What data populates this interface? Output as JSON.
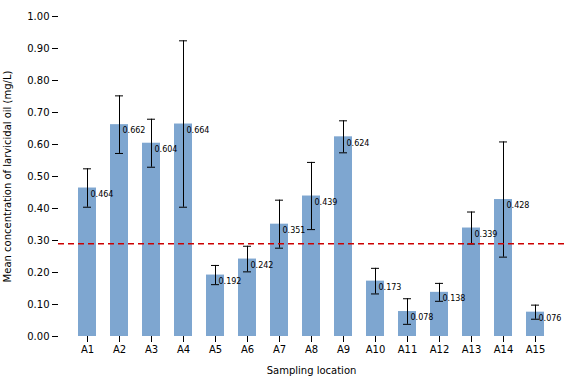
{
  "chart_data": {
    "type": "bar",
    "categories": [
      "A1",
      "A2",
      "A3",
      "A4",
      "A5",
      "A6",
      "A7",
      "A8",
      "A9",
      "A10",
      "A11",
      "A12",
      "A13",
      "A14",
      "A15"
    ],
    "values": [
      0.464,
      0.662,
      0.604,
      0.664,
      0.192,
      0.242,
      0.351,
      0.439,
      0.624,
      0.173,
      0.078,
      0.138,
      0.339,
      0.428,
      0.076
    ],
    "errors": [
      0.06,
      0.09,
      0.075,
      0.26,
      0.03,
      0.04,
      0.075,
      0.105,
      0.05,
      0.04,
      0.04,
      0.028,
      0.05,
      0.18,
      0.022
    ],
    "color": "#7ea6d0",
    "reference_lines": [
      {
        "value": 0.29,
        "color": "#cc0000",
        "line_style": "dashed"
      }
    ],
    "ylabel": "Mean concentration of larvicidal oil (mg/L)",
    "xlabel": "Sampling location",
    "ylim": [
      0.0,
      1.0
    ],
    "yticks": [
      {
        "value": 0.0,
        "label": "0.00"
      },
      {
        "value": 0.1,
        "label": "0.10"
      },
      {
        "value": 0.2,
        "label": "0.20"
      },
      {
        "value": 0.3,
        "label": "0.30"
      },
      {
        "value": 0.4,
        "label": "0.40"
      },
      {
        "value": 0.5,
        "label": "0.50"
      },
      {
        "value": 0.6,
        "label": "0.60"
      },
      {
        "value": 0.7,
        "label": "0.70"
      },
      {
        "value": 0.8,
        "label": "0.80"
      },
      {
        "value": 0.9,
        "label": "0.90"
      },
      {
        "value": 1.0,
        "label": "1.00"
      }
    ],
    "grid": false,
    "data_labels": true
  }
}
